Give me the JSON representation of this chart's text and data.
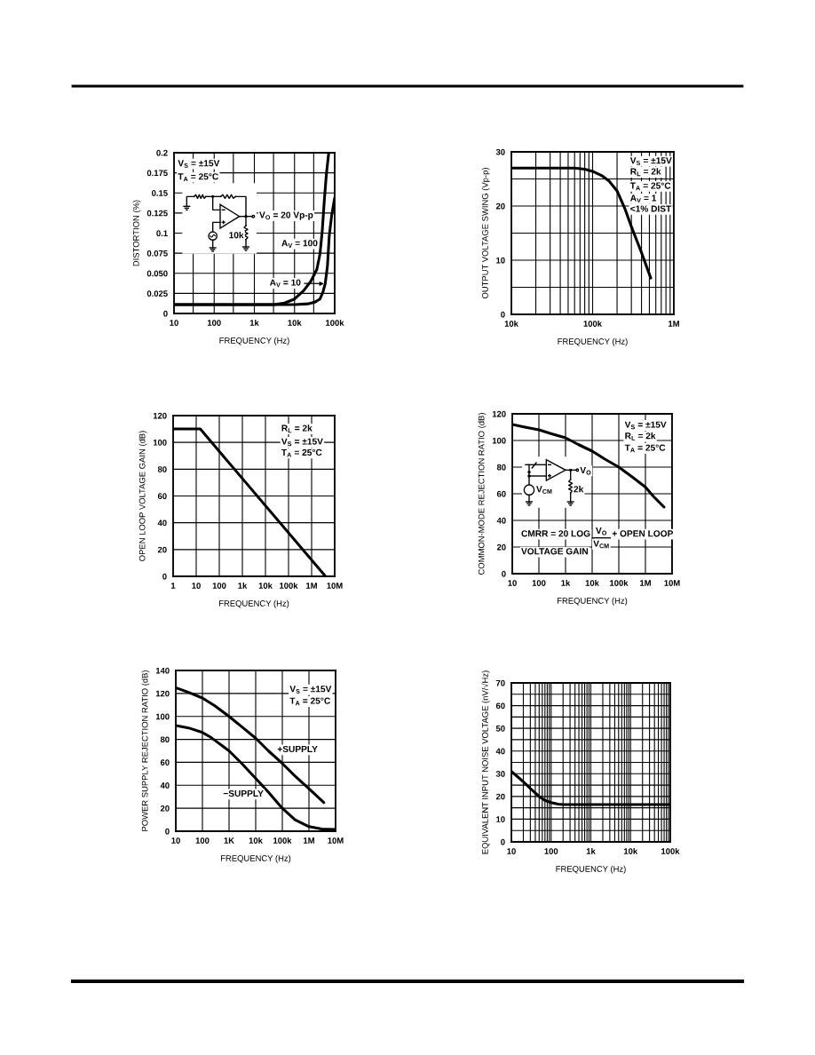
{
  "chart_data": [
    {
      "type": "line",
      "xlabel": "FREQUENCY (Hz)",
      "ylabel": "DISTORTION (%)",
      "log": "x",
      "grid": true,
      "xlim": [
        10,
        100000
      ],
      "ylim": [
        0,
        0.2
      ],
      "xticks": [
        10,
        {
          "value": 30,
          "label": null
        },
        100,
        {
          "value": 300,
          "label": null
        },
        {
          "value": 1000,
          "label": "1k"
        },
        {
          "value": 3000,
          "label": null
        },
        {
          "value": 10000,
          "label": "10k"
        },
        {
          "value": 30000,
          "label": null
        },
        {
          "value": 100000,
          "label": "100k"
        }
      ],
      "yticks": [
        0,
        0.025,
        {
          "value": 0.05,
          "label": "0.050"
        },
        0.075,
        0.1,
        0.125,
        0.15,
        0.175,
        0.2
      ],
      "series": [
        {
          "name": "A$_{V}$ = 100",
          "color": "#000000",
          "x": [
            10,
            3100,
            5600,
            10000,
            16600,
            25500,
            36000,
            43000,
            49000,
            55000,
            62000,
            71000
          ],
          "values": [
            0.011,
            0.011,
            0.013,
            0.018,
            0.028,
            0.04,
            0.055,
            0.074,
            0.103,
            0.14,
            0.173,
            0.2
          ]
        },
        {
          "name": "A$_{V}$ = 10",
          "color": "#000000",
          "x": [
            10,
            10000,
            21500,
            31600,
            43000,
            50600,
            58000,
            66000,
            73000,
            84000,
            100000
          ],
          "values": [
            0.011,
            0.011,
            0.012,
            0.014,
            0.018,
            0.026,
            0.037,
            0.059,
            0.096,
            0.122,
            0.144
          ]
        }
      ],
      "annotations": [
        "V$_{S}$ = ±15V",
        "T$_{A}$ = 25°C",
        "V$_{O}$ = 20 Vp-p",
        "10k"
      ]
    },
    {
      "type": "line",
      "xlabel": "FREQUENCY (Hz)",
      "ylabel": "OUTPUT VOLTAGE SWING (Vp-p)",
      "log": "x",
      "grid": true,
      "xlim": [
        10000,
        1000000
      ],
      "ylim": [
        0,
        30
      ],
      "xticks": [
        {
          "value": 10000,
          "label": "10k"
        },
        {
          "value": 20000,
          "label": null
        },
        {
          "value": 30000,
          "label": null
        },
        {
          "value": 40000,
          "label": null
        },
        {
          "value": 50000,
          "label": null
        },
        {
          "value": 60000,
          "label": null
        },
        {
          "value": 70000,
          "label": null
        },
        {
          "value": 80000,
          "label": null
        },
        {
          "value": 90000,
          "label": null
        },
        {
          "value": 100000,
          "label": "100k"
        },
        {
          "value": 200000,
          "label": null
        },
        {
          "value": 300000,
          "label": null
        },
        {
          "value": 400000,
          "label": null
        },
        {
          "value": 500000,
          "label": null
        },
        {
          "value": 600000,
          "label": null
        },
        {
          "value": 700000,
          "label": null
        },
        {
          "value": 800000,
          "label": null
        },
        {
          "value": 900000,
          "label": null
        },
        {
          "value": 1000000,
          "label": "1M"
        }
      ],
      "yticks": [
        0,
        {
          "value": 5,
          "label": null
        },
        10,
        {
          "value": 15,
          "label": null
        },
        20,
        {
          "value": 25,
          "label": null
        },
        30
      ],
      "series": [
        {
          "color": "#000000",
          "x": [
            10000,
            60000,
            80000,
            100000,
            130000,
            160000,
            200000,
            250000,
            300000,
            400000,
            520000
          ],
          "values": [
            27,
            27,
            26.8,
            26.4,
            25.6,
            24.6,
            22.8,
            19.5,
            16.2,
            11.4,
            6.7
          ]
        }
      ],
      "annotations": [
        "V$_{S}$ = ±15V",
        "R$_{L}$ = 2k",
        "T$_{A}$ = 25°C",
        "A$_{V}$ = 1",
        "<1% DIST"
      ]
    },
    {
      "type": "line",
      "xlabel": "FREQUENCY (Hz)",
      "ylabel": "OPEN LOOP VOLTAGE GAIN (dB)",
      "log": "x",
      "grid": true,
      "xlim": [
        1,
        10000000
      ],
      "ylim": [
        0,
        120
      ],
      "xticks": [
        1,
        10,
        100,
        {
          "value": 1000,
          "label": "1k"
        },
        {
          "value": 10000,
          "label": "10k"
        },
        {
          "value": 100000,
          "label": "100k"
        },
        {
          "value": 1000000,
          "label": "1M"
        },
        {
          "value": 10000000,
          "label": "10M"
        }
      ],
      "yticks": [
        0,
        20,
        40,
        60,
        80,
        100,
        120
      ],
      "series": [
        {
          "color": "#000000",
          "x": [
            1,
            15,
            4000000
          ],
          "values": [
            110,
            110,
            0
          ]
        }
      ],
      "annotations": [
        "R$_{L}$ = 2k",
        "V$_{S}$ = ±15V",
        "T$_{A}$ = 25°C"
      ]
    },
    {
      "type": "line",
      "xlabel": "FREQUENCY (Hz)",
      "ylabel": "COMMON-MODE REJECTION RATIO (dB)",
      "log": "x",
      "grid": true,
      "xlim": [
        10,
        10000000
      ],
      "ylim": [
        0,
        120
      ],
      "xticks": [
        10,
        100,
        {
          "value": 1000,
          "label": "1k"
        },
        {
          "value": 10000,
          "label": "10k"
        },
        {
          "value": 100000,
          "label": "100k"
        },
        {
          "value": 1000000,
          "label": "1M"
        },
        {
          "value": 10000000,
          "label": "10M"
        }
      ],
      "yticks": [
        0,
        20,
        40,
        60,
        80,
        100,
        120
      ],
      "series": [
        {
          "color": "#000000",
          "x": [
            10,
            30,
            100,
            300,
            1000,
            3000,
            10000,
            30000,
            100000,
            300000,
            1000000,
            2000000,
            5000000
          ],
          "values": [
            112,
            110,
            108,
            105,
            102,
            97,
            92,
            86,
            80,
            73,
            65,
            58,
            50
          ]
        }
      ],
      "annotations": [
        "V$_{S}$ = ±15V",
        "R$_{L}$ = 2k",
        "T$_{A}$ = 25°C",
        "V$_{O}$",
        "V$_{CM}$",
        "2k",
        "CMRR = 20 LOG",
        "V$_{O}$",
        "V$_{CM}$",
        "+ OPEN LOOP",
        "VOLTAGE GAIN"
      ]
    },
    {
      "type": "line",
      "xlabel": "FREQUENCY (Hz)",
      "ylabel": "POWER SUPPLY REJECTION RATIO (dB)",
      "log": "x",
      "grid": true,
      "xlim": [
        10,
        10000000
      ],
      "ylim": [
        0,
        140
      ],
      "xticks": [
        10,
        100,
        {
          "value": 1000,
          "label": "1K"
        },
        {
          "value": 10000,
          "label": "10k"
        },
        {
          "value": 100000,
          "label": "100k"
        },
        {
          "value": 1000000,
          "label": "1M"
        },
        {
          "value": 10000000,
          "label": "10M"
        }
      ],
      "yticks": [
        0,
        20,
        40,
        60,
        80,
        100,
        120,
        140
      ],
      "series": [
        {
          "name": "+SUPPLY",
          "color": "#000000",
          "x": [
            10,
            30,
            100,
            300,
            1000,
            3000,
            10000,
            30000,
            100000,
            300000,
            1000000,
            3600000
          ],
          "values": [
            125,
            121,
            116,
            109,
            100,
            91,
            81,
            70,
            59,
            48,
            37,
            25
          ]
        },
        {
          "name": "−SUPPLY",
          "color": "#000000",
          "x": [
            10,
            30,
            100,
            200,
            300,
            1000,
            3000,
            10000,
            30000,
            100000,
            300000,
            1000000,
            3000000,
            10000000
          ],
          "values": [
            92,
            90,
            86,
            82,
            79,
            70,
            59,
            46,
            34,
            20,
            10,
            4,
            2,
            1.5
          ]
        }
      ],
      "annotations": [
        "V$_{S}$ = ±15V",
        "T$_{A}$ = 25°C"
      ]
    },
    {
      "type": "line",
      "xlabel": "FREQUENCY (Hz)",
      "ylabel": "EQUIVALENT INPUT NOISE VOLTAGE (nV/√Hz)",
      "log": "x",
      "grid": true,
      "xlim": [
        10,
        100000
      ],
      "ylim": [
        0,
        70
      ],
      "xticks": [
        10,
        {
          "value": 20,
          "label": null
        },
        {
          "value": 30,
          "label": null
        },
        {
          "value": 40,
          "label": null
        },
        {
          "value": 50,
          "label": null
        },
        {
          "value": 60,
          "label": null
        },
        {
          "value": 70,
          "label": null
        },
        {
          "value": 80,
          "label": null
        },
        {
          "value": 90,
          "label": null
        },
        100,
        {
          "value": 200,
          "label": null
        },
        {
          "value": 300,
          "label": null
        },
        {
          "value": 400,
          "label": null
        },
        {
          "value": 500,
          "label": null
        },
        {
          "value": 600,
          "label": null
        },
        {
          "value": 700,
          "label": null
        },
        {
          "value": 800,
          "label": null
        },
        {
          "value": 900,
          "label": null
        },
        {
          "value": 1000,
          "label": "1k"
        },
        {
          "value": 2000,
          "label": null
        },
        {
          "value": 3000,
          "label": null
        },
        {
          "value": 4000,
          "label": null
        },
        {
          "value": 5000,
          "label": null
        },
        {
          "value": 6000,
          "label": null
        },
        {
          "value": 7000,
          "label": null
        },
        {
          "value": 8000,
          "label": null
        },
        {
          "value": 9000,
          "label": null
        },
        {
          "value": 10000,
          "label": "10k"
        },
        {
          "value": 20000,
          "label": null
        },
        {
          "value": 30000,
          "label": null
        },
        {
          "value": 40000,
          "label": null
        },
        {
          "value": 50000,
          "label": null
        },
        {
          "value": 60000,
          "label": null
        },
        {
          "value": 70000,
          "label": null
        },
        {
          "value": 80000,
          "label": null
        },
        {
          "value": 90000,
          "label": null
        },
        {
          "value": 100000,
          "label": "100k"
        }
      ],
      "yticks": [
        0,
        {
          "value": 5,
          "label": null
        },
        10,
        {
          "value": 15,
          "label": null
        },
        20,
        {
          "value": 25,
          "label": null
        },
        30,
        {
          "value": 35,
          "label": null
        },
        40,
        {
          "value": 45,
          "label": null
        },
        50,
        {
          "value": 55,
          "label": null
        },
        60,
        {
          "value": 65,
          "label": null
        },
        70
      ],
      "series": [
        {
          "color": "#000000",
          "x": [
            10,
            20,
            30,
            50,
            70,
            100,
            150,
            200,
            100000
          ],
          "values": [
            31,
            26.5,
            23.5,
            20,
            18.3,
            17.3,
            16.6,
            16.4,
            16.4
          ]
        }
      ]
    }
  ]
}
